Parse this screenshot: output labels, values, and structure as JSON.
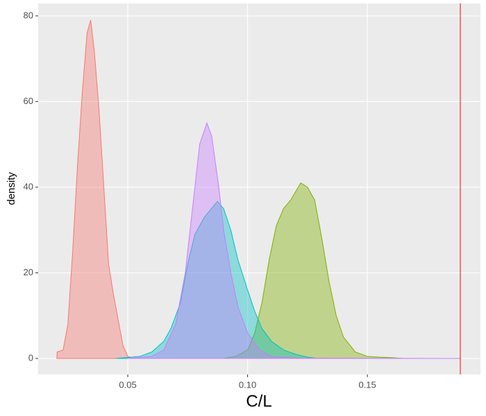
{
  "chart_data": {
    "type": "density",
    "x_label": "C/L",
    "y_label": "density",
    "xlim": [
      0.0126,
      0.1972
    ],
    "ylim": [
      -3.72,
      82.9
    ],
    "xticks": [
      {
        "value": 0.05,
        "label": "0.05"
      },
      {
        "value": 0.1,
        "label": "0.10"
      },
      {
        "value": 0.15,
        "label": "0.15"
      }
    ],
    "yticks": [
      0,
      20,
      40,
      60,
      80
    ],
    "grid": true,
    "vline": {
      "x": 0.1888,
      "color": "#ff0000"
    },
    "series": [
      {
        "color": "#F8766D",
        "x": [
          0.0204,
          0.0205,
          0.023,
          0.025,
          0.027,
          0.029,
          0.031,
          0.033,
          0.0345,
          0.036,
          0.038,
          0.04,
          0.042,
          0.044,
          0.046,
          0.048,
          0.05,
          0.052
        ],
        "values": [
          0,
          1.5,
          2,
          8,
          25,
          45,
          62,
          76,
          79,
          72,
          58,
          40,
          22,
          15,
          9,
          3,
          0.5,
          0
        ]
      },
      {
        "color": "#7CAE00",
        "x": [
          0.09,
          0.095,
          0.1,
          0.103,
          0.106,
          0.109,
          0.112,
          0.115,
          0.118,
          0.1222,
          0.125,
          0.128,
          0.131,
          0.134,
          0.137,
          0.14,
          0.145,
          0.15,
          0.155,
          0.16,
          0.165
        ],
        "values": [
          0,
          0.5,
          2,
          6,
          13,
          23,
          31,
          35,
          37,
          41,
          40,
          37,
          28,
          18,
          10,
          5,
          1.5,
          0.5,
          0.3,
          0.2,
          0
        ]
      },
      {
        "color": "#00BFC4",
        "x": [
          0.045,
          0.055,
          0.06,
          0.065,
          0.068,
          0.072,
          0.075,
          0.078,
          0.082,
          0.0874,
          0.09,
          0.093,
          0.096,
          0.1,
          0.103,
          0.106,
          0.11,
          0.115,
          0.12,
          0.125,
          0.13
        ],
        "values": [
          0,
          0.5,
          1.5,
          4,
          7,
          13,
          22,
          29,
          33,
          36.7,
          35,
          30,
          23,
          16,
          11,
          7,
          4,
          2,
          1,
          0.3,
          0
        ]
      },
      {
        "color": "#C77CFF",
        "x": [
          0.05,
          0.06,
          0.065,
          0.07,
          0.074,
          0.077,
          0.08,
          0.083,
          0.085,
          0.088,
          0.09,
          0.093,
          0.096,
          0.1,
          0.105,
          0.11,
          0.12,
          0.189
        ],
        "values": [
          0,
          0.5,
          2,
          8,
          20,
          35,
          50,
          55,
          52,
          40,
          30,
          20,
          12,
          6,
          2,
          0.5,
          0.1,
          0
        ]
      }
    ]
  }
}
